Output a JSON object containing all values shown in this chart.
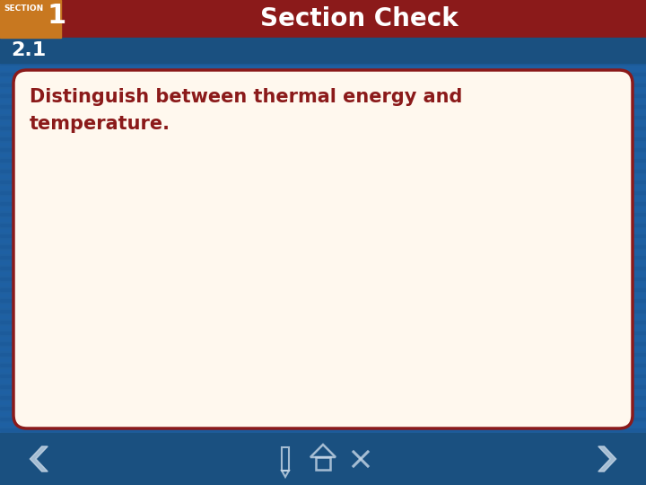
{
  "title": "Section Check",
  "section_label": "SECTION",
  "section_number": "1",
  "section_sub": "2.1",
  "body_text": "Distinguish between thermal energy and\ntemperature.",
  "bg_color": "#2060a0",
  "header_bar_color": "#8b1a1a",
  "header_text_color": "#ffffff",
  "orange_box_color": "#c87820",
  "section_label_color": "#ffffff",
  "section_num_color": "#ffffff",
  "section_sub_color": "#ffffff",
  "content_bg_color": "#fff8ee",
  "content_border_color": "#8b1a1a",
  "body_text_color": "#8b1a1a",
  "nav_color": "#1a5080",
  "nav_arrow_color": "#c8d8e8",
  "title_fontsize": 20,
  "section_label_fontsize": 7,
  "section_num_fontsize": 20,
  "section_sub_fontsize": 16,
  "body_fontsize": 15
}
